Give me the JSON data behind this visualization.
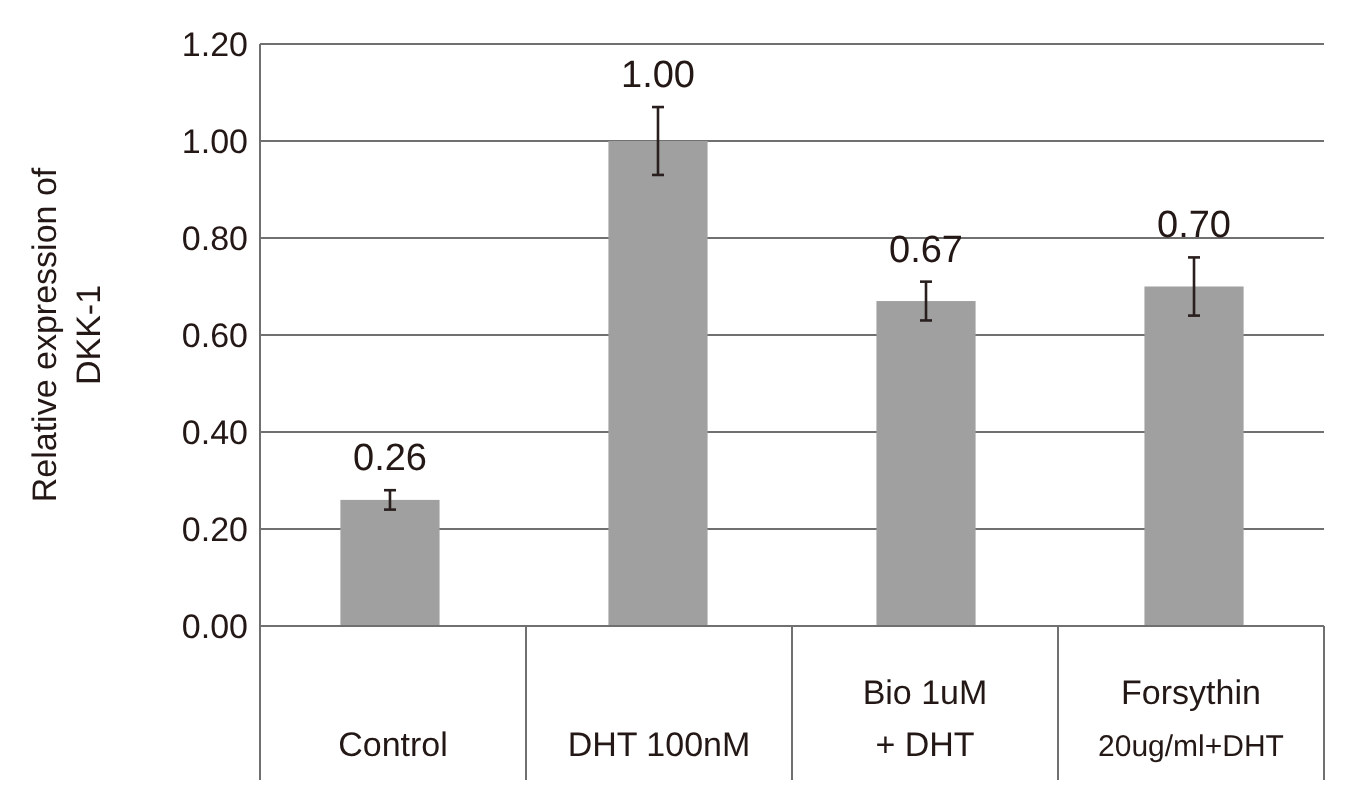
{
  "chart_data": {
    "type": "bar",
    "ylabel": "Relative expression of DKK-1",
    "categories": [
      "Control",
      "DHT 100nM",
      "Bio 1uM\n+ DHT",
      "Forsythin\n20ug/ml+DHT"
    ],
    "values": [
      0.26,
      1.0,
      0.67,
      0.7
    ],
    "errors": [
      0.02,
      0.07,
      0.04,
      0.06
    ],
    "color": "#a0a0a0",
    "ylim": [
      0,
      1.2
    ],
    "yticks": [
      {
        "value": 0,
        "label": "0.00"
      },
      {
        "value": 0.2,
        "label": "0.20"
      },
      {
        "value": 0.4,
        "label": "0.40"
      },
      {
        "value": 0.6,
        "label": "0.60"
      },
      {
        "value": 0.8,
        "label": "0.80"
      },
      {
        "value": 1,
        "label": "1.00"
      },
      {
        "value": 1.2,
        "label": "1.20"
      }
    ],
    "value_labels": [
      "0.26",
      "1.00",
      "0.67",
      "0.70"
    ],
    "grid": "y"
  }
}
